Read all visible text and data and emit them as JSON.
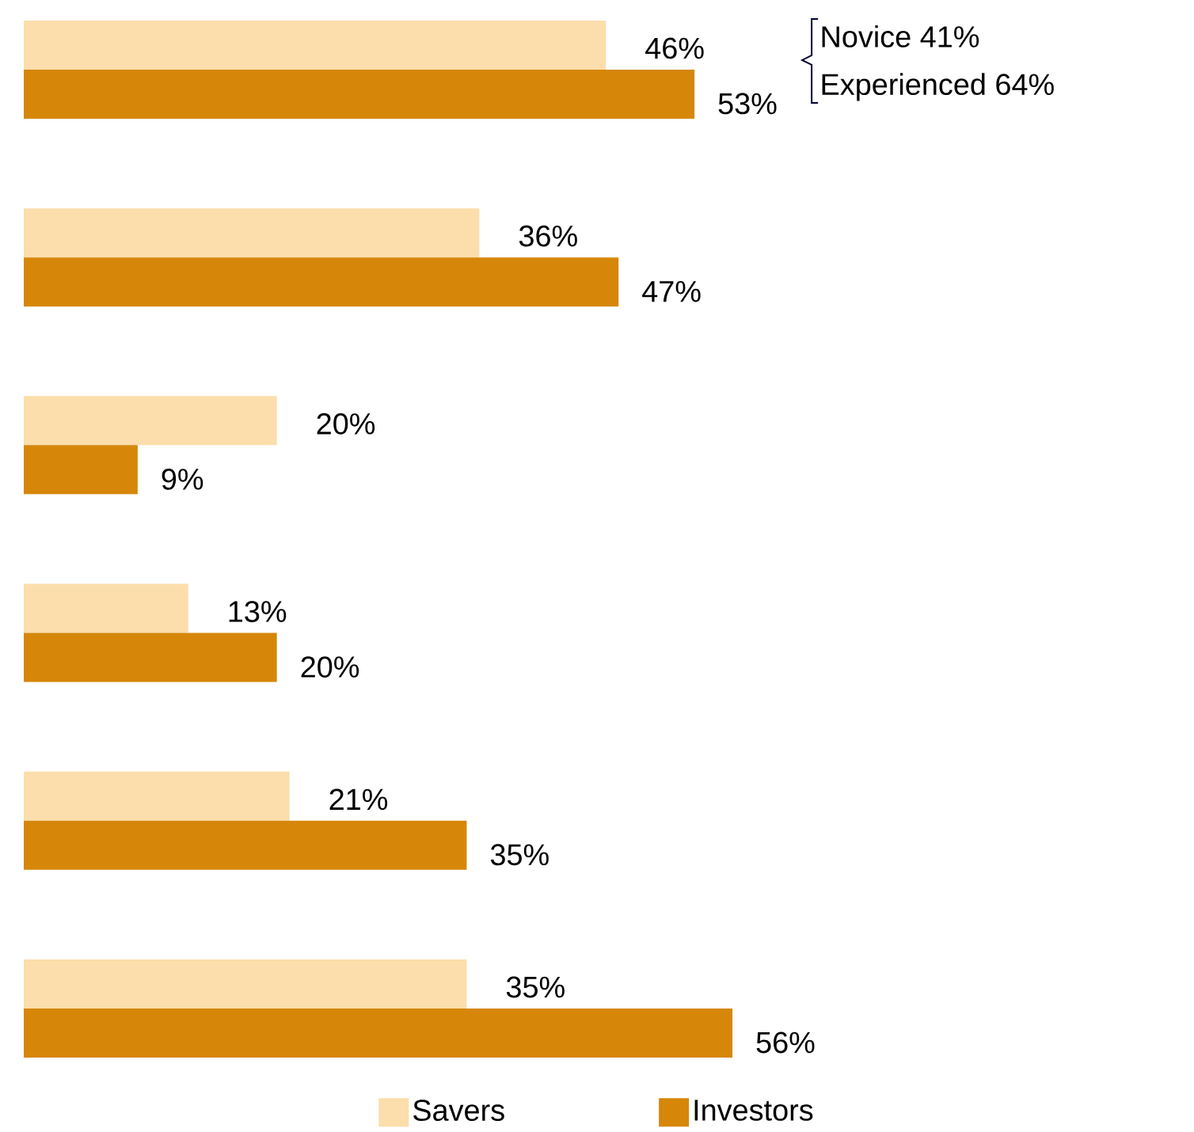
{
  "chart_data": {
    "type": "bar",
    "orientation": "horizontal",
    "categories": [
      null,
      null,
      null,
      null,
      null,
      null
    ],
    "series": [
      {
        "name": "Savers",
        "color": "#fbdeab",
        "values": [
          46,
          36,
          20,
          13,
          21,
          35
        ],
        "value_labels": [
          "46%",
          "36%",
          "20%",
          "13%",
          "21%",
          "35%"
        ]
      },
      {
        "name": "Investors",
        "color": "#d6870a",
        "values": [
          53,
          47,
          9,
          20,
          35,
          56
        ],
        "value_labels": [
          "53%",
          "47%",
          "9%",
          "20%",
          "35%",
          "56%"
        ]
      }
    ],
    "legend": "bottom",
    "annotations": [
      "Novice 41%",
      "Experienced 64%"
    ]
  }
}
